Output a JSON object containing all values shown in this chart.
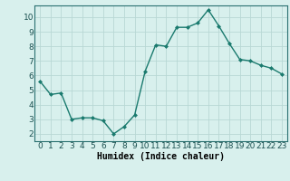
{
  "x": [
    0,
    1,
    2,
    3,
    4,
    5,
    6,
    7,
    8,
    9,
    10,
    11,
    12,
    13,
    14,
    15,
    16,
    17,
    18,
    19,
    20,
    21,
    22,
    23
  ],
  "y": [
    5.6,
    4.7,
    4.8,
    3.0,
    3.1,
    3.1,
    2.9,
    2.0,
    2.5,
    3.3,
    6.3,
    8.1,
    8.0,
    9.3,
    9.3,
    9.6,
    10.5,
    9.4,
    8.2,
    7.1,
    7.0,
    6.7,
    6.5,
    6.1
  ],
  "line_color": "#1a7a6e",
  "marker": "D",
  "marker_size": 2.0,
  "bg_color": "#d8f0ed",
  "grid_color": "#b8d8d4",
  "xlabel": "Humidex (Indice chaleur)",
  "ylabel": "",
  "ylim": [
    1.5,
    10.8
  ],
  "xlim": [
    -0.5,
    23.5
  ],
  "yticks": [
    2,
    3,
    4,
    5,
    6,
    7,
    8,
    9,
    10
  ],
  "xticks": [
    0,
    1,
    2,
    3,
    4,
    5,
    6,
    7,
    8,
    9,
    10,
    11,
    12,
    13,
    14,
    15,
    16,
    17,
    18,
    19,
    20,
    21,
    22,
    23
  ],
  "xlabel_fontsize": 7,
  "tick_fontsize": 6.5,
  "line_width": 1.0
}
